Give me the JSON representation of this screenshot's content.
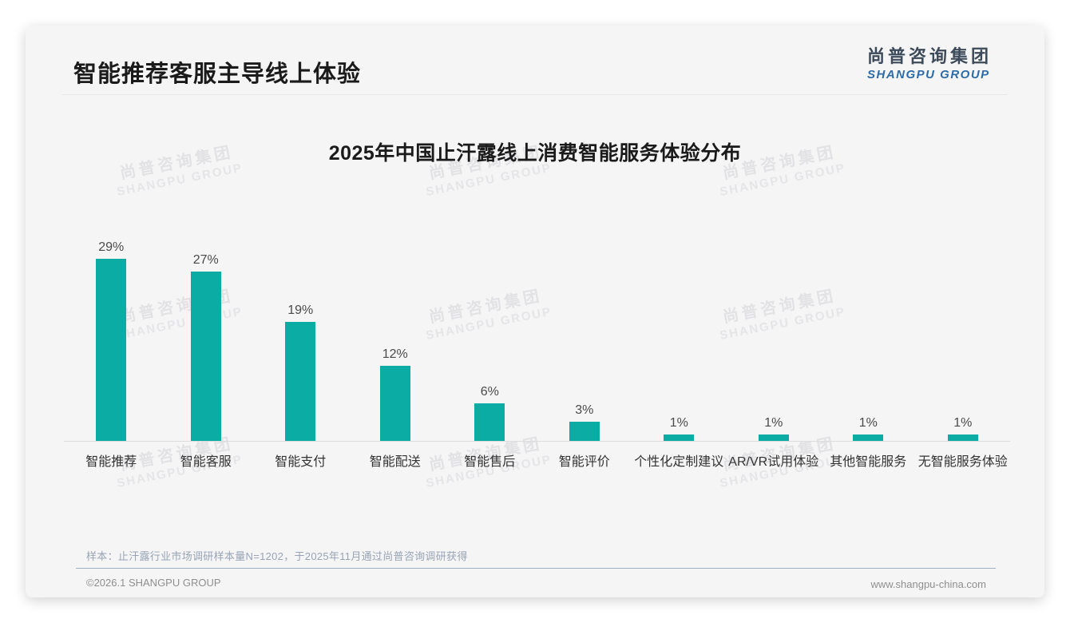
{
  "header": {
    "title": "智能推荐客服主导线上体验"
  },
  "logo": {
    "cn": "尚普咨询集团",
    "en": "SHANGPU GROUP"
  },
  "watermark": {
    "cn": "尚普咨询集团",
    "en": "SHANGPU GROUP"
  },
  "chart_data": {
    "type": "bar",
    "title": "2025年中国止汗露线上消费智能服务体验分布",
    "categories": [
      "智能推荐",
      "智能客服",
      "智能支付",
      "智能配送",
      "智能售后",
      "智能评价",
      "个性化定制建议",
      "AR/VR试用体验",
      "其他智能服务",
      "无智能服务体验"
    ],
    "values": [
      29,
      27,
      19,
      12,
      6,
      3,
      1,
      1,
      1,
      1
    ],
    "unit": "%",
    "bar_color": "#0baca4",
    "ylim": [
      0,
      30
    ],
    "grid": false,
    "legend": "none",
    "value_label_position": "above-bar"
  },
  "note": {
    "text": "样本：止汗露行业市场调研样本量N=1202，于2025年11月通过尚普咨询调研获得"
  },
  "footer": {
    "left": "©2026.1 SHANGPU GROUP",
    "right": "www.shangpu-china.com"
  }
}
